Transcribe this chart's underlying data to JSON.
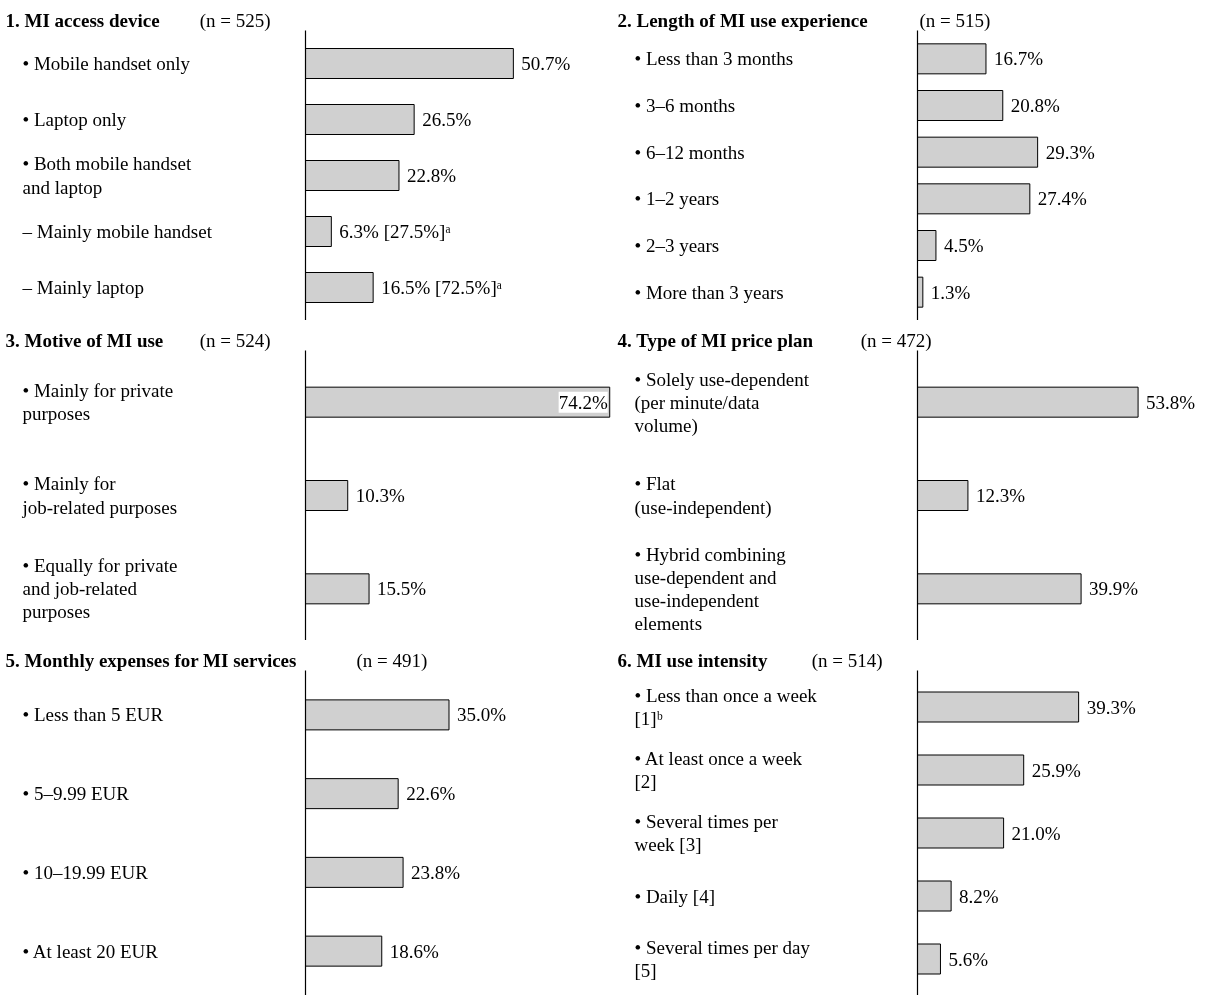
{
  "chart_data": [
    {
      "type": "bar",
      "orientation": "horizontal",
      "title": "1. MI access device",
      "subtitle": "(n = 525)",
      "color": "#d0d0d0",
      "categories": [
        "• Mobile handset only",
        "• Laptop only",
        "• Both mobile handset and laptop",
        "– Mainly mobile handset",
        "– Mainly laptop"
      ],
      "values": [
        50.7,
        26.5,
        22.8,
        6.3,
        16.5
      ],
      "value_labels": [
        "50.7%",
        "26.5%",
        "22.8%",
        "6.3% [27.5%]ᵃ",
        "16.5% [72.5%]ᵃ"
      ]
    },
    {
      "type": "bar",
      "orientation": "horizontal",
      "title": "2. Length of MI use experience",
      "subtitle": "(n = 515)",
      "color": "#d0d0d0",
      "categories": [
        "• Less than 3 months",
        "• 3–6 months",
        "• 6–12 months",
        "• 1–2 years",
        "• 2–3 years",
        "• More than 3 years"
      ],
      "values": [
        16.7,
        20.8,
        29.3,
        27.4,
        4.5,
        1.3
      ],
      "value_labels": [
        "16.7%",
        "20.8%",
        "29.3%",
        "27.4%",
        "4.5%",
        "1.3%"
      ]
    },
    {
      "type": "bar",
      "orientation": "horizontal",
      "title": "3. Motive of MI use",
      "subtitle": "(n = 524)",
      "color": "#d0d0d0",
      "categories": [
        "• Mainly for private purposes",
        "• Mainly for job-related purposes",
        "• Equally for private and job-related purposes"
      ],
      "values": [
        74.2,
        10.3,
        15.5
      ],
      "value_labels": [
        "74.2%",
        "10.3%",
        "15.5%"
      ]
    },
    {
      "type": "bar",
      "orientation": "horizontal",
      "title": "4. Type of MI price plan",
      "subtitle": "(n = 472)",
      "color": "#d0d0d0",
      "categories": [
        "• Solely use-dependent (per minute/data volume)",
        "• Flat (use-independent)",
        "• Hybrid combining use-dependent and use-independent elements"
      ],
      "values": [
        53.8,
        12.3,
        39.9
      ],
      "value_labels": [
        "53.8%",
        "12.3%",
        "39.9%"
      ]
    },
    {
      "type": "bar",
      "orientation": "horizontal",
      "title": "5. Monthly expenses for MI services",
      "subtitle": "(n = 491)",
      "color": "#d0d0d0",
      "categories": [
        "• Less than 5 EUR",
        "• 5–9.99 EUR",
        "• 10–19.99 EUR",
        "• At least 20 EUR"
      ],
      "values": [
        35.0,
        22.6,
        23.8,
        18.6
      ],
      "value_labels": [
        "35.0%",
        "22.6%",
        "23.8%",
        "18.6%"
      ]
    },
    {
      "type": "bar",
      "orientation": "horizontal",
      "title": "6. MI use intensity",
      "subtitle": "(n = 514)",
      "color": "#d0d0d0",
      "categories": [
        "• Less than once a week [1]ᵇ",
        "• At least once a week [2]",
        "• Several times per week [3]",
        "• Daily [4]",
        "• Several times per day [5]"
      ],
      "values": [
        39.3,
        25.9,
        21.0,
        8.2,
        5.6
      ],
      "value_labels": [
        "39.3%",
        "25.9%",
        "21.0%",
        "8.2%",
        "5.6%"
      ]
    }
  ]
}
